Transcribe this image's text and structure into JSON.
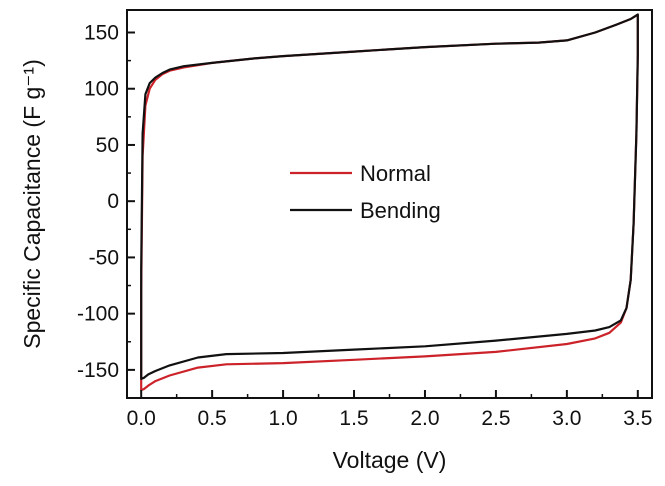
{
  "chart_data": {
    "type": "line",
    "title": "",
    "xlabel": "Voltage (V)",
    "ylabel": "Specific Capacitance (F g⁻¹)",
    "xlim": [
      -0.1,
      3.6
    ],
    "ylim": [
      -175,
      170
    ],
    "xticks": [
      0.0,
      0.5,
      1.0,
      1.5,
      2.0,
      2.5,
      3.0,
      3.5
    ],
    "xtick_labels": [
      "0.0",
      "0.5",
      "1.0",
      "1.5",
      "2.0",
      "2.5",
      "3.0",
      "3.5"
    ],
    "yticks": [
      -150,
      -100,
      -50,
      0,
      50,
      100,
      150
    ],
    "ytick_labels": [
      "-150",
      "-100",
      "-50",
      "0",
      "50",
      "100",
      "150"
    ],
    "legend_position": "center",
    "series": [
      {
        "name": "Normal",
        "color": "#cc2229",
        "x": [
          0.0,
          0.0,
          0.01,
          0.03,
          0.06,
          0.1,
          0.15,
          0.2,
          0.3,
          0.5,
          0.8,
          1.0,
          1.5,
          2.0,
          2.5,
          2.8,
          3.0,
          3.2,
          3.35,
          3.45,
          3.5,
          3.5,
          3.49,
          3.47,
          3.45,
          3.42,
          3.38,
          3.3,
          3.2,
          3.0,
          2.5,
          2.0,
          1.5,
          1.0,
          0.6,
          0.4,
          0.2,
          0.1,
          0.05,
          0.02,
          0.0,
          0.0
        ],
        "y": [
          -168,
          -80,
          40,
          85,
          100,
          108,
          113,
          116,
          119,
          123,
          127,
          129,
          133,
          137,
          140,
          141,
          143,
          150,
          157,
          162,
          166,
          130,
          60,
          -20,
          -70,
          -95,
          -108,
          -117,
          -122,
          -127,
          -134,
          -138,
          -141,
          -144,
          -145,
          -148,
          -155,
          -160,
          -164,
          -167,
          -168,
          -168
        ]
      },
      {
        "name": "Bending",
        "color": "#111111",
        "x": [
          0.0,
          0.0,
          0.01,
          0.03,
          0.06,
          0.1,
          0.15,
          0.2,
          0.3,
          0.5,
          0.8,
          1.0,
          1.5,
          2.0,
          2.5,
          2.8,
          3.0,
          3.2,
          3.35,
          3.45,
          3.5,
          3.5,
          3.49,
          3.47,
          3.45,
          3.42,
          3.38,
          3.3,
          3.2,
          3.0,
          2.5,
          2.0,
          1.5,
          1.0,
          0.6,
          0.4,
          0.2,
          0.1,
          0.05,
          0.02,
          0.0,
          0.0
        ],
        "y": [
          -158,
          -60,
          60,
          95,
          105,
          110,
          114,
          117,
          120,
          123,
          127,
          129,
          133,
          137,
          140,
          141,
          143,
          150,
          157,
          162,
          166,
          130,
          60,
          -20,
          -70,
          -95,
          -106,
          -112,
          -115,
          -118,
          -124,
          -129,
          -132,
          -135,
          -136,
          -139,
          -146,
          -151,
          -154,
          -157,
          -158,
          -158
        ]
      }
    ]
  }
}
